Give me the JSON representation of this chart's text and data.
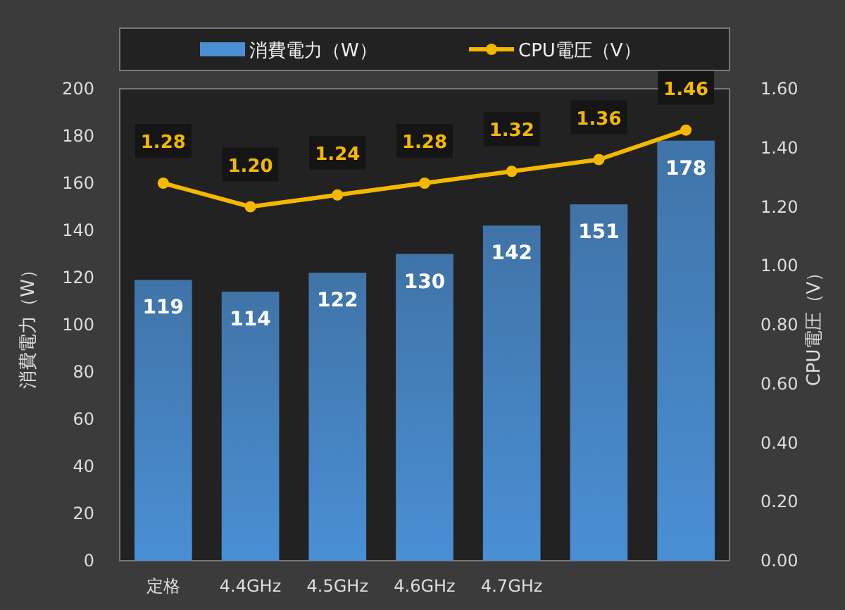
{
  "chart_data": {
    "type": "bar",
    "categories": [
      "定格",
      "4.4GHz",
      "4.5GHz",
      "4.6GHz",
      "4.7GHz",
      null,
      null
    ],
    "ylabel": "消費電力（W）",
    "y2label": "CPU電圧（V）",
    "ylim": [
      0,
      200
    ],
    "yticks": [
      0,
      20,
      40,
      60,
      80,
      100,
      120,
      140,
      160,
      180,
      200
    ],
    "y2lim": [
      0,
      1.6
    ],
    "y2ticks": [
      {
        "value": 0,
        "label": "0.00"
      },
      {
        "value": 0.2,
        "label": "0.20"
      },
      {
        "value": 0.4,
        "label": "0.40"
      },
      {
        "value": 0.6,
        "label": "0.60"
      },
      {
        "value": 0.8,
        "label": "0.80"
      },
      {
        "value": 1.0,
        "label": "1.00"
      },
      {
        "value": 1.2,
        "label": "1.20"
      },
      {
        "value": 1.4,
        "label": "1.40"
      },
      {
        "value": 1.6,
        "label": "1.60"
      }
    ],
    "series": [
      {
        "name": "消費電力（W）",
        "color": "#4a8fd4",
        "values": [
          119,
          114,
          122,
          130,
          142,
          151,
          178
        ],
        "value_labels": [
          "119",
          "114",
          "122",
          "130",
          "142",
          "151",
          "178"
        ]
      },
      {
        "name": "CPU電圧（V）",
        "type": "line",
        "axis": "y2",
        "color": "#f5b800",
        "marker": "circle",
        "values": [
          1.28,
          1.2,
          1.24,
          1.28,
          1.32,
          1.36,
          1.46
        ],
        "value_labels": [
          "1.28",
          "1.20",
          "1.24",
          "1.28",
          "1.32",
          "1.36",
          "1.46"
        ]
      }
    ],
    "grid": false,
    "legend": "top"
  }
}
